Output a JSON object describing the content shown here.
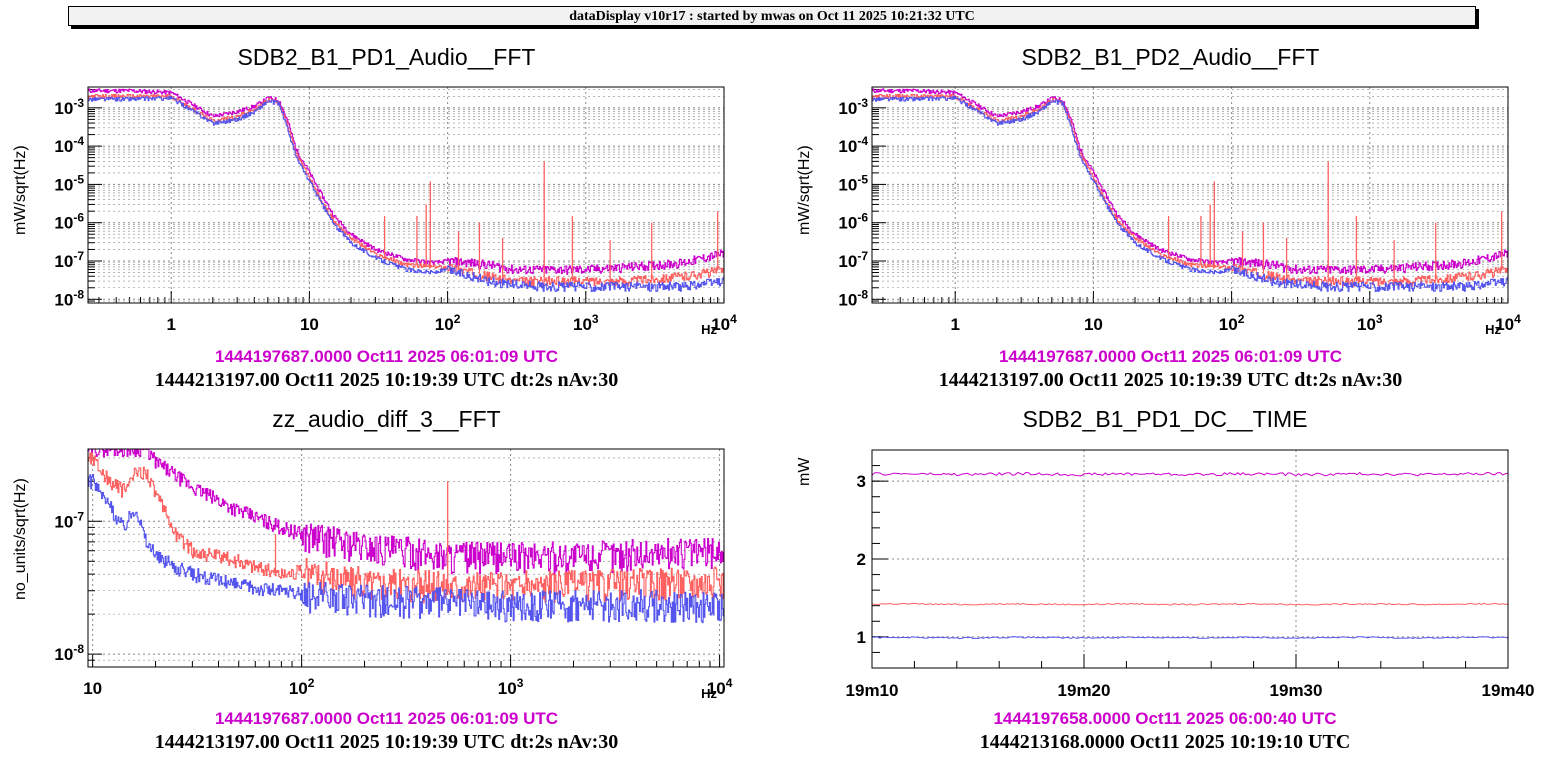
{
  "header": {
    "text": "dataDisplay v10r17 : started by mwas on Oct 11 2025 10:21:32 UTC"
  },
  "colors": {
    "ref": "#cc00cc",
    "mid": "#ff6060",
    "cur": "#5555ee"
  },
  "panels": [
    {
      "title": "SDB2_B1_PD1_Audio__FFT",
      "ts_ref": "1444197687.0000 Oct11 2025 06:01:09 UTC",
      "ts_cur": "1444213197.00 Oct11 2025 10:19:39 UTC dt:2s nAv:30"
    },
    {
      "title": "SDB2_B1_PD2_Audio__FFT",
      "ts_ref": "1444197687.0000 Oct11 2025 06:01:09 UTC",
      "ts_cur": "1444213197.00 Oct11 2025 10:19:39 UTC dt:2s nAv:30"
    },
    {
      "title": "zz_audio_diff_3__FFT",
      "ts_ref": "1444197687.0000 Oct11 2025 06:01:09 UTC",
      "ts_cur": "1444213197.00 Oct11 2025 10:19:39 UTC dt:2s nAv:30"
    },
    {
      "title": "SDB2_B1_PD1_DC__TIME",
      "ts_ref": "1444197658.0000 Oct11 2025 06:00:40 UTC",
      "ts_cur": "1444213168.0000 Oct11 2025 10:19:10 UTC"
    }
  ],
  "chart_data": [
    {
      "type": "line",
      "title": "SDB2_B1_PD1_Audio__FFT",
      "xlabel": "Hz",
      "ylabel": "mW/sqrt(Hz)",
      "xscale": "log",
      "yscale": "log",
      "xlim": [
        0.25,
        10000
      ],
      "ylim": [
        8e-09,
        0.0035
      ],
      "xticks": [
        1,
        10,
        100,
        1000,
        10000
      ],
      "xtick_labels": [
        "1",
        "10",
        "10^2",
        "10^3",
        "10^4"
      ],
      "yticks": [
        1e-08,
        1e-07,
        1e-06,
        1e-05,
        0.0001,
        0.001
      ],
      "ytick_labels": [
        "10^-8",
        "10^-7",
        "10^-6",
        "10^-5",
        "10^-4",
        "10^-3"
      ],
      "grid": true,
      "series": [
        {
          "color": "#cc00cc",
          "x": [
            0.25,
            0.5,
            1,
            2,
            3,
            4,
            5,
            6,
            7,
            8,
            10,
            12,
            15,
            20,
            30,
            50,
            80,
            100,
            150,
            200,
            300,
            500,
            1000,
            2000,
            5000,
            10000
          ],
          "y": [
            0.0028,
            0.0028,
            0.0025,
            0.0006,
            0.0008,
            0.0011,
            0.0018,
            0.0016,
            0.0004,
            8e-05,
            2e-05,
            6e-06,
            1.5e-06,
            5e-07,
            2e-07,
            1.1e-07,
            9e-08,
            1e-07,
            9e-08,
            8e-08,
            6e-08,
            6e-08,
            6e-08,
            7e-08,
            9e-08,
            1.6e-07
          ]
        },
        {
          "color": "#ff6060",
          "x": [
            0.25,
            0.5,
            1,
            2,
            3,
            4,
            5,
            6,
            7,
            8,
            10,
            12,
            15,
            20,
            30,
            50,
            80,
            100,
            150,
            200,
            300,
            500,
            1000,
            2000,
            5000,
            10000
          ],
          "y": [
            0.002,
            0.002,
            0.002,
            0.00045,
            0.0006,
            0.0009,
            0.0016,
            0.0014,
            0.0003,
            6e-05,
            1.5e-05,
            4e-06,
            1.1e-06,
            4e-07,
            1.5e-07,
            8e-08,
            7e-08,
            7e-08,
            5e-08,
            4e-08,
            3e-08,
            3e-08,
            3e-08,
            3e-08,
            4e-08,
            6e-08
          ]
        },
        {
          "color": "#5555ee",
          "x": [
            0.25,
            0.5,
            1,
            2,
            3,
            4,
            5,
            6,
            7,
            8,
            10,
            12,
            15,
            20,
            30,
            50,
            80,
            100,
            150,
            200,
            300,
            500,
            1000,
            2000,
            5000,
            10000
          ],
          "y": [
            0.0017,
            0.0017,
            0.0018,
            0.0004,
            0.0005,
            0.0008,
            0.0015,
            0.0013,
            0.00025,
            5e-05,
            1.2e-05,
            3.5e-06,
            9e-07,
            3e-07,
            1.2e-07,
            6e-08,
            5e-08,
            6e-08,
            4e-08,
            3e-08,
            2.5e-08,
            2.2e-08,
            2.2e-08,
            2.2e-08,
            2.2e-08,
            3e-08
          ]
        }
      ],
      "peaks": [
        {
          "x": 35,
          "y": 1.5e-06
        },
        {
          "x": 60,
          "y": 1.5e-06
        },
        {
          "x": 70,
          "y": 3e-06
        },
        {
          "x": 75,
          "y": 1.2e-05
        },
        {
          "x": 120,
          "y": 6e-07
        },
        {
          "x": 170,
          "y": 1e-06
        },
        {
          "x": 250,
          "y": 4e-07
        },
        {
          "x": 500,
          "y": 4e-05
        },
        {
          "x": 800,
          "y": 1.5e-06
        },
        {
          "x": 1500,
          "y": 3.5e-07
        },
        {
          "x": 3000,
          "y": 1e-06
        },
        {
          "x": 9000,
          "y": 2e-06
        }
      ]
    },
    {
      "type": "line",
      "title": "SDB2_B1_PD2_Audio__FFT",
      "xlabel": "Hz",
      "ylabel": "mW/sqrt(Hz)",
      "xscale": "log",
      "yscale": "log",
      "xlim": [
        0.25,
        10000
      ],
      "ylim": [
        8e-09,
        0.0035
      ],
      "xticks": [
        1,
        10,
        100,
        1000,
        10000
      ],
      "xtick_labels": [
        "1",
        "10",
        "10^2",
        "10^3",
        "10^4"
      ],
      "yticks": [
        1e-08,
        1e-07,
        1e-06,
        1e-05,
        0.0001,
        0.001
      ],
      "ytick_labels": [
        "10^-8",
        "10^-7",
        "10^-6",
        "10^-5",
        "10^-4",
        "10^-3"
      ],
      "grid": true,
      "series": [
        {
          "color": "#cc00cc",
          "x": [
            0.25,
            0.5,
            1,
            2,
            3,
            4,
            5,
            6,
            7,
            8,
            10,
            12,
            15,
            20,
            30,
            50,
            80,
            100,
            150,
            200,
            300,
            500,
            1000,
            2000,
            5000,
            10000
          ],
          "y": [
            0.0028,
            0.0028,
            0.0025,
            0.0006,
            0.0008,
            0.0011,
            0.0018,
            0.0016,
            0.0004,
            8e-05,
            2e-05,
            6e-06,
            1.5e-06,
            5e-07,
            2e-07,
            1.1e-07,
            9e-08,
            1e-07,
            9e-08,
            8e-08,
            6e-08,
            6e-08,
            6e-08,
            7e-08,
            9e-08,
            1.6e-07
          ]
        },
        {
          "color": "#ff6060",
          "x": [
            0.25,
            0.5,
            1,
            2,
            3,
            4,
            5,
            6,
            7,
            8,
            10,
            12,
            15,
            20,
            30,
            50,
            80,
            100,
            150,
            200,
            300,
            500,
            1000,
            2000,
            5000,
            10000
          ],
          "y": [
            0.002,
            0.002,
            0.002,
            0.00045,
            0.0006,
            0.0009,
            0.0016,
            0.0014,
            0.0003,
            6e-05,
            1.5e-05,
            4e-06,
            1.1e-06,
            4e-07,
            1.5e-07,
            8e-08,
            7e-08,
            7e-08,
            5e-08,
            4e-08,
            3e-08,
            3e-08,
            3e-08,
            3e-08,
            4e-08,
            6e-08
          ]
        },
        {
          "color": "#5555ee",
          "x": [
            0.25,
            0.5,
            1,
            2,
            3,
            4,
            5,
            6,
            7,
            8,
            10,
            12,
            15,
            20,
            30,
            50,
            80,
            100,
            150,
            200,
            300,
            500,
            1000,
            2000,
            5000,
            10000
          ],
          "y": [
            0.0017,
            0.0017,
            0.0018,
            0.0004,
            0.0005,
            0.0008,
            0.0015,
            0.0013,
            0.00025,
            5e-05,
            1.2e-05,
            3.5e-06,
            9e-07,
            3e-07,
            1.2e-07,
            6e-08,
            5e-08,
            6e-08,
            4e-08,
            3e-08,
            2.5e-08,
            2.2e-08,
            2.2e-08,
            2.2e-08,
            2.2e-08,
            3e-08
          ]
        }
      ],
      "peaks": [
        {
          "x": 35,
          "y": 1.5e-06
        },
        {
          "x": 60,
          "y": 1.5e-06
        },
        {
          "x": 70,
          "y": 3e-06
        },
        {
          "x": 75,
          "y": 1.2e-05
        },
        {
          "x": 120,
          "y": 6e-07
        },
        {
          "x": 170,
          "y": 1e-06
        },
        {
          "x": 250,
          "y": 4e-07
        },
        {
          "x": 500,
          "y": 4e-05
        },
        {
          "x": 800,
          "y": 1.5e-06
        },
        {
          "x": 1500,
          "y": 3.5e-07
        },
        {
          "x": 3000,
          "y": 1e-06
        },
        {
          "x": 9000,
          "y": 2e-06
        }
      ]
    },
    {
      "type": "line",
      "title": "zz_audio_diff_3__FFT",
      "xlabel": "Hz",
      "ylabel": "no_units/sqrt(Hz)",
      "xscale": "log",
      "yscale": "log",
      "xlim": [
        9.5,
        10500
      ],
      "ylim": [
        8e-09,
        3.5e-07
      ],
      "xticks": [
        10,
        100,
        1000,
        10000
      ],
      "xtick_labels": [
        "10",
        "10^2",
        "10^3",
        "10^4"
      ],
      "yticks": [
        1e-08,
        1e-07
      ],
      "ytick_labels": [
        "10^-8",
        "10^-7"
      ],
      "grid": true,
      "series": [
        {
          "color": "#cc00cc",
          "x": [
            10,
            15,
            18,
            20,
            30,
            50,
            80,
            100,
            200,
            500,
            1000,
            2000,
            5000,
            10000
          ],
          "y": [
            3.5e-07,
            3.5e-07,
            3.5e-07,
            2.8e-07,
            1.8e-07,
            1.2e-07,
            9e-08,
            8e-08,
            6.5e-08,
            5.5e-08,
            5.5e-08,
            5.5e-08,
            5.8e-08,
            6e-08
          ]
        },
        {
          "color": "#ff6060",
          "x": [
            10,
            12,
            14,
            16,
            18,
            20,
            25,
            30,
            50,
            80,
            100,
            200,
            500,
            1000,
            2000,
            5000,
            10000
          ],
          "y": [
            3e-07,
            2e-07,
            1.7e-07,
            2.3e-07,
            2.4e-07,
            1.6e-07,
            8e-08,
            6e-08,
            5e-08,
            4e-08,
            4.2e-08,
            3.5e-08,
            3.3e-08,
            3.3e-08,
            3.4e-08,
            3.5e-08,
            3.6e-08
          ]
        },
        {
          "color": "#5555ee",
          "x": [
            10,
            12,
            14,
            16,
            18,
            20,
            25,
            30,
            50,
            80,
            100,
            200,
            500,
            1000,
            2000,
            5000,
            10000
          ],
          "y": [
            2e-07,
            1.3e-07,
            9e-08,
            1.3e-07,
            7e-08,
            5.5e-08,
            4.5e-08,
            4e-08,
            3.3e-08,
            3e-08,
            2.8e-08,
            2.6e-08,
            2.5e-08,
            2.4e-08,
            2.4e-08,
            2.4e-08,
            2.3e-08
          ]
        }
      ],
      "peaks": [
        {
          "x": 500,
          "y": 2e-07
        },
        {
          "x": 75,
          "y": 8e-08
        }
      ]
    },
    {
      "type": "line",
      "title": "SDB2_B1_PD1_DC__TIME",
      "xlabel": "",
      "ylabel": "mW",
      "xlim": [
        0,
        30
      ],
      "ylim": [
        0.6,
        3.4
      ],
      "xticks": [
        0,
        10,
        20,
        30
      ],
      "xtick_labels": [
        "19m10",
        "19m20",
        "19m30",
        "19m40"
      ],
      "yticks": [
        1,
        2,
        3
      ],
      "ytick_labels": [
        "1",
        "2",
        "3"
      ],
      "grid": true,
      "series": [
        {
          "color": "#cc00cc",
          "level": 3.09
        },
        {
          "color": "#ff6060",
          "level": 1.42
        },
        {
          "color": "#5555ee",
          "level": 0.99
        }
      ]
    }
  ]
}
